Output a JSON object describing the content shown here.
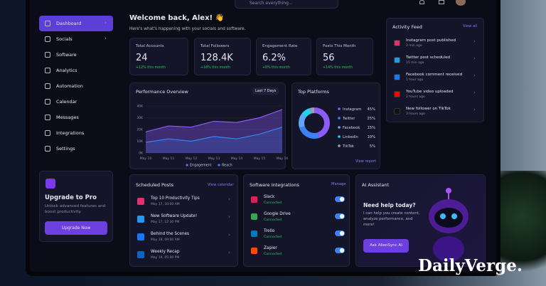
{
  "search": "Search everything...",
  "sidebar": {
    "nav": [
      "Dashboard",
      "Socials",
      "Software",
      "Analytics",
      "Automation",
      "Calendar",
      "Messages",
      "Integrations",
      "Settings"
    ],
    "upgrade": {
      "title": "Upgrade to Pro",
      "text": "Unlock advanced features and boost productivity.",
      "button": "Upgrade Now"
    }
  },
  "header": {
    "title": "Welcome back, Alex! 👋",
    "subtitle": "Here's what's happening with your socials and software."
  },
  "stats": [
    {
      "label": "Total Accounts",
      "value": "24",
      "change": "+12% this month"
    },
    {
      "label": "Total Followers",
      "value": "128.4K",
      "change": "+18% this month"
    },
    {
      "label": "Engagement Rate",
      "value": "6.2%",
      "change": "+8% this month"
    },
    {
      "label": "Posts This Month",
      "value": "56",
      "change": "+14% this month"
    }
  ],
  "performance": {
    "title": "Performance Overview",
    "range": "Last 7 Days",
    "chart_data": {
      "type": "line",
      "categories": [
        "May 10",
        "May 11",
        "May 12",
        "May 13",
        "May 14",
        "May 15",
        "May 16"
      ],
      "ylim": [
        0,
        40
      ],
      "yticks": [
        {
          "value": 0,
          "label": "0K"
        },
        {
          "value": 10,
          "label": "10K"
        },
        {
          "value": 20,
          "label": "20K"
        },
        {
          "value": 30,
          "label": "30K"
        },
        {
          "value": 40,
          "label": "40K"
        }
      ],
      "series": [
        {
          "name": "Engagement",
          "color": "#8b5cf6",
          "values": [
            18,
            23,
            22,
            27,
            26,
            30,
            37
          ]
        },
        {
          "name": "Reach",
          "color": "#3b82f6",
          "values": [
            9,
            12,
            10,
            14,
            12,
            16,
            22
          ]
        }
      ]
    }
  },
  "platforms": {
    "title": "Top Platforms",
    "link": "View report",
    "chart_data": {
      "type": "pie",
      "categories": [
        "Instagram",
        "Twitter",
        "Facebook",
        "LinkedIn",
        "TikTok"
      ],
      "values": [
        45,
        25,
        15,
        10,
        5
      ],
      "value_labels": [
        "45%",
        "25%",
        "15%",
        "10%",
        "5%"
      ],
      "colors": [
        "#8b5cf6",
        "#3b82f6",
        "#60a5fa",
        "#22d3ee",
        "#94a3b8"
      ]
    }
  },
  "activity": {
    "title": "Activity Feed",
    "link": "View all",
    "items": [
      {
        "text": "Instagram post published",
        "time": "2 min ago"
      },
      {
        "text": "Twitter post scheduled",
        "time": "15 min ago"
      },
      {
        "text": "Facebook comment received",
        "time": "1 hour ago"
      },
      {
        "text": "YouTube video uploaded",
        "time": "2 hours ago"
      },
      {
        "text": "New follower on TikTok",
        "time": "3 hours ago"
      }
    ]
  },
  "scheduled": {
    "title": "Scheduled Posts",
    "link": "View calendar",
    "items": [
      {
        "title": "Top 10 Productivity Tips",
        "time": "May 17, 10:00 AM"
      },
      {
        "title": "New Software Update!",
        "time": "May 17, 12:30 PM"
      },
      {
        "title": "Behind the Scenes",
        "time": "May 18, 09:00 AM"
      },
      {
        "title": "Weekly Recap",
        "time": "May 19, 05:00 PM"
      }
    ]
  },
  "integrations": {
    "title": "Software Integrations",
    "link": "Manage",
    "items": [
      {
        "name": "Slack",
        "status": "Connected"
      },
      {
        "name": "Google Drive",
        "status": "Connected"
      },
      {
        "name": "Trello",
        "status": "Connected"
      },
      {
        "name": "Zapier",
        "status": "Connected"
      }
    ]
  },
  "assistant": {
    "title": "AI Assistant",
    "heading": "Need help today?",
    "text": "I can help you create content, analyze performance, and more!",
    "button": "Ask AlienSync AI"
  },
  "watermark": "DailyVerge."
}
